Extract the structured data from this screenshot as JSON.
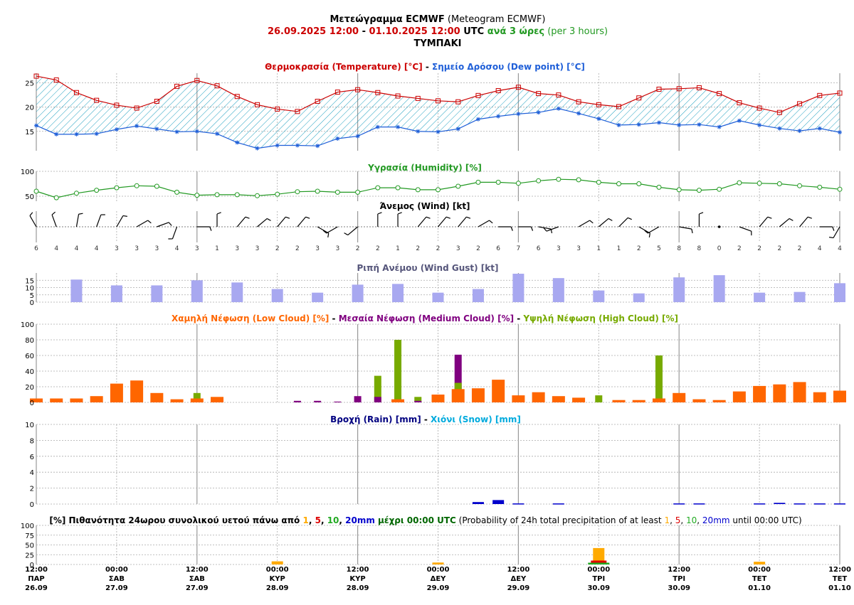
{
  "header": {
    "line1_bold": "Μετεώγραμμα ECMWF",
    "line1_normal": " (Meteogram ECMWF)",
    "date_start": "26.09.2025 12:00",
    "date_sep": " - ",
    "date_end": "01.10.2025 12:00",
    "utc": " UTC",
    "every3h": " ανά 3 ώρες",
    "per3h": " (per 3 hours)",
    "location": "ΤΥΜΠΑΚΙ"
  },
  "titles": {
    "temp_gr": "Θερμοκρασία (Temperature) [°C]",
    "temp_sep": " - ",
    "dew_gr": "Σημείο Δρόσου (Dew point) [°C]",
    "humidity": "Υγρασία (Humidity) [%]",
    "wind": "Άνεμος (Wind) [kt]",
    "gust": "Ριπή Ανέμου (Wind Gust) [kt]",
    "low_cloud": "Χαμηλή Νέφωση (Low Cloud) [%]",
    "cloud_sep": " - ",
    "med_cloud": "Μεσαία Νέφωση (Medium Cloud) [%]",
    "high_cloud": "Υψηλή Νέφωση (High Cloud) [%]",
    "rain": "Βροχή (Rain) [mm]",
    "rain_sep": " - ",
    "snow": "Χιόνι (Snow) [mm]",
    "prob_a": "[%] Πιθανότητα 24ωρου συνολικού υετού πάνω από ",
    "t1": "1",
    "c1": ", ",
    "t5": "5",
    "c2": ", ",
    "t10": "10",
    "c3": ", ",
    "t20": "20mm",
    "prob_b": " μέχρι 00:00 UTC",
    "prob_c": " (Probability of 24h total precipitation of at least ",
    "p1": "1",
    "d1": ", ",
    "p5": "5",
    "d2": ", ",
    "p10": "10",
    "d3": ", ",
    "p20": "20mm",
    "prob_d": " until 00:00 UTC)"
  },
  "colors": {
    "temperature": "#cc0000",
    "dewpoint": "#1f5fd8",
    "fill_hatch": "#20a0c0",
    "humidity": "#229922",
    "gust": "#a8a8f0",
    "low_cloud": "#ff6600",
    "medium_cloud": "#800080",
    "high_cloud": "#77aa00",
    "rain": "#0000cc",
    "snow": "#00aadd",
    "prob_1": "#ffaa00",
    "prob_5": "#dd0000",
    "prob_10": "#22aa22",
    "prob_20": "#0000cc"
  },
  "time_axis": [
    {
      "time": "12:00",
      "day": "ΠΑΡ",
      "date": "26.09"
    },
    {
      "time": "00:00",
      "day": "ΣΑΒ",
      "date": "27.09"
    },
    {
      "time": "12:00",
      "day": "ΣΑΒ",
      "date": "27.09"
    },
    {
      "time": "00:00",
      "day": "ΚΥΡ",
      "date": "28.09"
    },
    {
      "time": "12:00",
      "day": "ΚΥΡ",
      "date": "28.09"
    },
    {
      "time": "00:00",
      "day": "ΔΕΥ",
      "date": "29.09"
    },
    {
      "time": "12:00",
      "day": "ΔΕΥ",
      "date": "29.09"
    },
    {
      "time": "00:00",
      "day": "ΤΡΙ",
      "date": "30.09"
    },
    {
      "time": "12:00",
      "day": "ΤΡΙ",
      "date": "30.09"
    },
    {
      "time": "00:00",
      "day": "ΤΕΤ",
      "date": "01.10"
    },
    {
      "time": "12:00",
      "day": "ΤΕΤ",
      "date": "01.10"
    }
  ],
  "chart_data": [
    {
      "type": "line",
      "name": "temperature_dewpoint",
      "steps": 41,
      "x_start": "2025-09-26 12:00",
      "x_step_hours": 3,
      "ylim": [
        11,
        27
      ],
      "yticks": [
        15,
        20,
        25
      ],
      "series": [
        {
          "name": "Θερμοκρασία (Temperature)",
          "values": [
            26.4,
            25.6,
            23.0,
            21.4,
            20.4,
            19.8,
            21.2,
            24.3,
            25.5,
            24.4,
            22.2,
            20.5,
            19.6,
            19.1,
            21.2,
            23.1,
            23.6,
            23.0,
            22.3,
            21.8,
            21.3,
            21.1,
            22.4,
            23.4,
            24.1,
            22.8,
            22.5,
            21.1,
            20.5,
            20.1,
            21.9,
            23.7,
            23.8,
            24.0,
            22.8,
            20.9,
            19.8,
            18.9,
            20.7,
            22.4,
            22.9
          ]
        },
        {
          "name": "Σημείο Δρόσου (Dew point)",
          "values": [
            16.2,
            14.4,
            14.4,
            14.5,
            15.4,
            16.1,
            15.5,
            14.9,
            15.0,
            14.5,
            12.7,
            11.5,
            12.1,
            12.1,
            12.0,
            13.5,
            14.0,
            15.9,
            15.9,
            15.0,
            14.9,
            15.5,
            17.5,
            18.1,
            18.6,
            18.9,
            19.7,
            18.7,
            17.6,
            16.3,
            16.4,
            16.8,
            16.3,
            16.4,
            15.9,
            17.2,
            16.3,
            15.6,
            15.1,
            15.6,
            14.8
          ]
        }
      ]
    },
    {
      "type": "line",
      "name": "humidity",
      "steps": 41,
      "ylim": [
        40,
        100
      ],
      "yticks": [
        50,
        100
      ],
      "values": [
        60,
        47,
        56,
        62,
        67,
        71,
        70,
        58,
        52,
        53,
        53,
        51,
        54,
        59,
        60,
        58,
        58,
        67,
        67,
        63,
        63,
        70,
        78,
        78,
        76,
        81,
        84,
        83,
        78,
        75,
        75,
        68,
        63,
        62,
        64,
        77,
        76,
        75,
        71,
        68,
        64
      ]
    },
    {
      "type": "wind",
      "name": "wind",
      "steps": 41,
      "speeds_kt": [
        6,
        4,
        4,
        4,
        3,
        3,
        3,
        4,
        3,
        1,
        3,
        3,
        2,
        2,
        3,
        3,
        2,
        2,
        1,
        2,
        2,
        3,
        2,
        6,
        7,
        6,
        3,
        3,
        1,
        1,
        2,
        5,
        8,
        8,
        0,
        2,
        2,
        2,
        2,
        4,
        4
      ],
      "directions_deg": [
        330,
        340,
        10,
        20,
        30,
        60,
        70,
        200,
        90,
        0,
        40,
        50,
        40,
        40,
        120,
        240,
        230,
        0,
        0,
        40,
        40,
        40,
        60,
        90,
        90,
        100,
        250,
        60,
        50,
        45,
        120,
        240,
        100,
        0,
        0,
        110,
        40,
        50,
        40,
        90,
        210
      ]
    },
    {
      "type": "bar",
      "name": "wind_gust",
      "steps": 41,
      "ylim": [
        0,
        20
      ],
      "yticks": [
        0,
        5,
        10,
        15
      ],
      "values": [
        null,
        null,
        15.5,
        null,
        11.5,
        null,
        11.5,
        null,
        15,
        null,
        13.5,
        null,
        9,
        null,
        6.5,
        null,
        12,
        null,
        12.5,
        null,
        6.5,
        null,
        9,
        null,
        19.5,
        null,
        16.5,
        null,
        8,
        null,
        6,
        null,
        17,
        null,
        18.5,
        null,
        6.5,
        null,
        7,
        null,
        13
      ]
    },
    {
      "type": "bar",
      "name": "clouds",
      "steps": 41,
      "ylim": [
        0,
        100
      ],
      "yticks": [
        0,
        20,
        40,
        60,
        80,
        100
      ],
      "series": [
        {
          "name": "Χαμηλή Νέφωση (Low Cloud)",
          "values": [
            5,
            5,
            5,
            8,
            24,
            28,
            12,
            4,
            5,
            7,
            0,
            0,
            0,
            0,
            0,
            0,
            0,
            0,
            4,
            0,
            10,
            17,
            18,
            29,
            9,
            13,
            8,
            6,
            0,
            3,
            3,
            5,
            12,
            4,
            3,
            14,
            21,
            23,
            26,
            13,
            15
          ]
        },
        {
          "name": "Μεσαία Νέφωση (Medium Cloud)",
          "values": [
            0,
            0,
            0,
            0,
            0,
            0,
            0,
            0,
            0,
            0,
            0,
            0,
            0,
            2,
            2,
            1,
            8,
            7,
            0,
            2,
            0,
            61,
            0,
            0,
            0,
            0,
            0,
            0,
            0,
            0,
            0,
            0,
            0,
            0,
            0,
            0,
            0,
            0,
            0,
            0,
            0
          ]
        },
        {
          "name": "Υψηλή Νέφωση (High Cloud)",
          "values": [
            0,
            0,
            0,
            0,
            0,
            0,
            0,
            0,
            12,
            0,
            0,
            0,
            0,
            0,
            0,
            0,
            0,
            34,
            80,
            7,
            0,
            25,
            0,
            0,
            0,
            0,
            0,
            0,
            9,
            0,
            0,
            60,
            0,
            0,
            0,
            0,
            0,
            0,
            0,
            0,
            0
          ]
        }
      ]
    },
    {
      "type": "bar",
      "name": "rain_snow",
      "steps": 41,
      "ylim": [
        0,
        10
      ],
      "yticks": [
        0,
        2,
        4,
        6,
        8,
        10
      ],
      "series": [
        {
          "name": "Βροχή (Rain)",
          "values": [
            0,
            0,
            0,
            0,
            0,
            0,
            0,
            0,
            0,
            0,
            0,
            0,
            0,
            0,
            0,
            0,
            0,
            0,
            0,
            0,
            0,
            0,
            0.25,
            0.5,
            0.08,
            0,
            0.08,
            0,
            0,
            0,
            0,
            0,
            0.08,
            0.08,
            0,
            0,
            0.08,
            0.15,
            0.08,
            0.08,
            0.08
          ]
        },
        {
          "name": "Χιόνι (Snow)",
          "values": [
            0,
            0,
            0,
            0,
            0,
            0,
            0,
            0,
            0,
            0,
            0,
            0,
            0,
            0,
            0,
            0,
            0,
            0,
            0,
            0,
            0,
            0,
            0,
            0,
            0,
            0,
            0,
            0,
            0,
            0,
            0,
            0,
            0,
            0,
            0,
            0,
            0,
            0,
            0,
            0,
            0
          ]
        }
      ]
    },
    {
      "type": "bar",
      "name": "precip_probability",
      "ylim": [
        0,
        100
      ],
      "yticks": [
        0,
        25,
        50,
        75,
        100
      ],
      "categories": [
        "27.09 00:00",
        "28.09 00:00",
        "29.09 00:00",
        "30.09 00:00",
        "01.10 00:00"
      ],
      "series": [
        {
          "name": "1",
          "values": [
            0,
            8,
            5,
            42,
            7
          ]
        },
        {
          "name": "5",
          "values": [
            0,
            0,
            0,
            10,
            0
          ]
        },
        {
          "name": "10",
          "values": [
            0,
            0,
            0,
            4,
            0
          ]
        },
        {
          "name": "20mm",
          "values": [
            0,
            0,
            0,
            0,
            0
          ]
        }
      ]
    }
  ]
}
